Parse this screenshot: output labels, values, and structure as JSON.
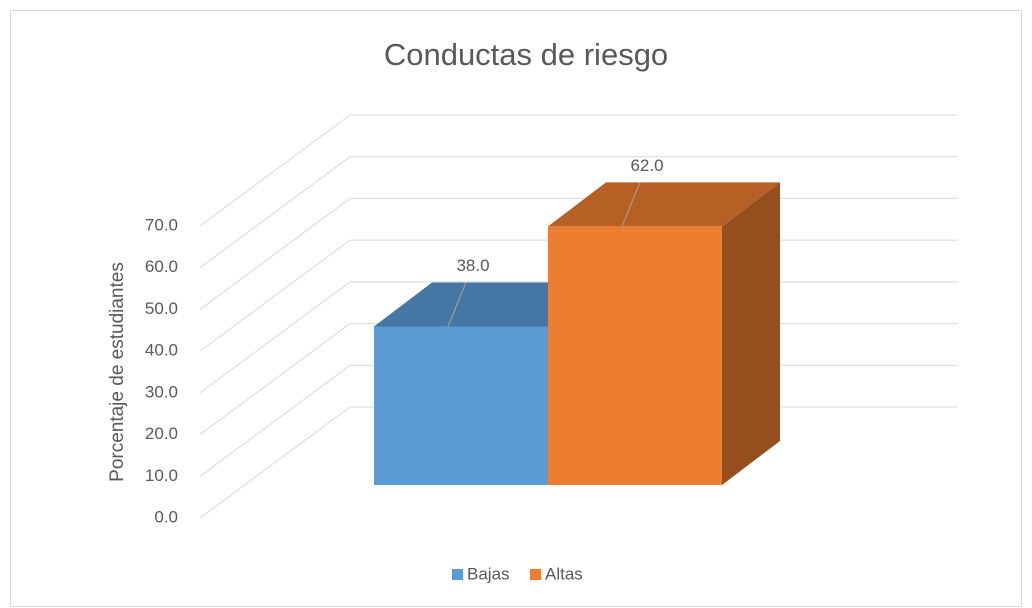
{
  "chart_data": {
    "type": "bar3d",
    "title": "Conductas de riesgo",
    "y_label": "Porcentaje de estudiantes",
    "series": [
      {
        "name": "Bajas",
        "color": "#5b9bd5",
        "values": [
          38
        ],
        "value_labels": [
          "38.0"
        ]
      },
      {
        "name": "Altas",
        "color": "#ed7d31",
        "values": [
          62
        ],
        "value_labels": [
          "62.0"
        ]
      }
    ],
    "ylim": [
      0,
      70
    ],
    "yticks": [
      {
        "value": 0,
        "label": "0.0"
      },
      {
        "value": 10,
        "label": "10.0"
      },
      {
        "value": 20,
        "label": "20.0"
      },
      {
        "value": 30,
        "label": "30.0"
      },
      {
        "value": 40,
        "label": "40.0"
      },
      {
        "value": 50,
        "label": "50.0"
      },
      {
        "value": 60,
        "label": "60.0"
      },
      {
        "value": 70,
        "label": "70.0"
      }
    ],
    "grid": true,
    "legend": "bottom"
  }
}
